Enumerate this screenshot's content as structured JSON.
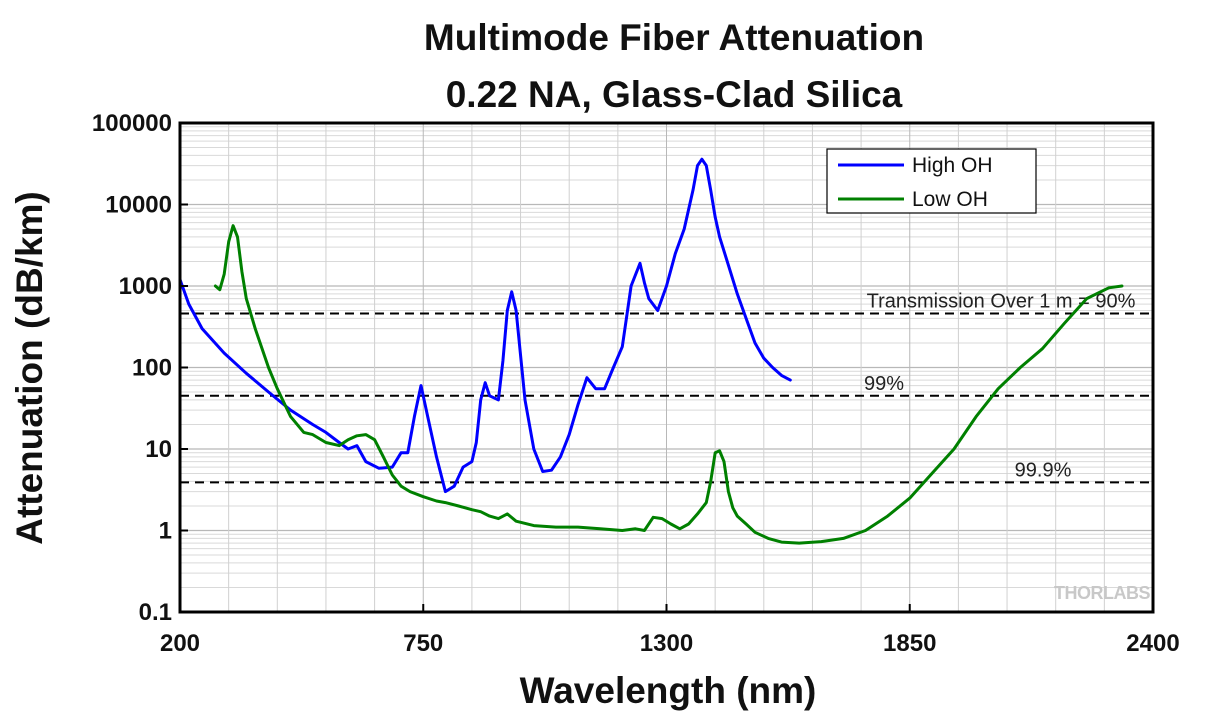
{
  "chart_data": {
    "type": "line",
    "title_lines": [
      "Multimode Fiber Attenuation",
      "0.22 NA, Glass-Clad Silica"
    ],
    "xlabel": "Wavelength (nm)",
    "ylabel": "Attenuation (dB/km)",
    "xlim": [
      200,
      2400
    ],
    "ylim": [
      0.1,
      100000
    ],
    "yscale": "log",
    "x_ticks": [
      200,
      750,
      1300,
      1850,
      2400
    ],
    "x_tick_labels": [
      "200",
      "750",
      "1300",
      "1850",
      "2400"
    ],
    "y_ticks": [
      0.1,
      1,
      10,
      100,
      1000,
      10000,
      100000
    ],
    "y_tick_labels": [
      "0.1",
      "1",
      "10",
      "100",
      "1000",
      "10000",
      "100000"
    ],
    "grid": true,
    "legend_position": "top-right",
    "series": [
      {
        "name": "High OH",
        "color": "#0000ff",
        "x": [
          200,
          220,
          250,
          300,
          350,
          400,
          450,
          500,
          530,
          560,
          580,
          600,
          620,
          650,
          680,
          700,
          715,
          730,
          745,
          760,
          780,
          800,
          820,
          840,
          860,
          870,
          880,
          890,
          900,
          920,
          930,
          940,
          950,
          960,
          980,
          1000,
          1020,
          1040,
          1060,
          1080,
          1100,
          1120,
          1140,
          1160,
          1180,
          1200,
          1220,
          1240,
          1250,
          1260,
          1280,
          1300,
          1320,
          1340,
          1360,
          1370,
          1380,
          1390,
          1400,
          1410,
          1420,
          1440,
          1460,
          1480,
          1500,
          1520,
          1540,
          1560,
          1580
        ],
        "y": [
          1200,
          600,
          300,
          150,
          85,
          50,
          30,
          20,
          16,
          12,
          10,
          11,
          7,
          5.8,
          6,
          9,
          9,
          25,
          60,
          25,
          8,
          3,
          3.5,
          6,
          7,
          12,
          40,
          65,
          45,
          40,
          120,
          500,
          850,
          500,
          40,
          10,
          5.3,
          5.5,
          8,
          15,
          35,
          75,
          55,
          55,
          100,
          180,
          1000,
          1900,
          1100,
          700,
          500,
          1000,
          2500,
          5000,
          15000,
          30000,
          36000,
          30000,
          15000,
          7000,
          4000,
          1800,
          800,
          400,
          200,
          130,
          100,
          80,
          70
        ]
      },
      {
        "name": "Low OH",
        "color": "#008000",
        "x": [
          280,
          290,
          300,
          310,
          320,
          330,
          340,
          350,
          370,
          400,
          420,
          450,
          480,
          500,
          530,
          560,
          580,
          600,
          620,
          640,
          660,
          680,
          700,
          720,
          750,
          780,
          800,
          830,
          860,
          880,
          900,
          920,
          940,
          960,
          1000,
          1050,
          1100,
          1150,
          1200,
          1230,
          1250,
          1270,
          1290,
          1310,
          1330,
          1350,
          1370,
          1390,
          1400,
          1410,
          1420,
          1430,
          1440,
          1450,
          1460,
          1480,
          1500,
          1530,
          1560,
          1600,
          1650,
          1700,
          1750,
          1800,
          1850,
          1900,
          1950,
          2000,
          2050,
          2100,
          2150,
          2200,
          2250,
          2300,
          2330
        ],
        "y": [
          1000,
          900,
          1400,
          3500,
          5500,
          4000,
          1500,
          700,
          300,
          100,
          55,
          25,
          16,
          15,
          12,
          11,
          13,
          14.5,
          15,
          13,
          8,
          4.8,
          3.5,
          3,
          2.6,
          2.3,
          2.2,
          2,
          1.8,
          1.7,
          1.5,
          1.4,
          1.6,
          1.3,
          1.15,
          1.1,
          1.1,
          1.05,
          1.0,
          1.05,
          1.0,
          1.45,
          1.4,
          1.2,
          1.05,
          1.2,
          1.6,
          2.2,
          4,
          9,
          9.5,
          7,
          3,
          1.9,
          1.5,
          1.2,
          0.95,
          0.8,
          0.72,
          0.7,
          0.73,
          0.8,
          1.0,
          1.5,
          2.5,
          5,
          10,
          25,
          55,
          100,
          170,
          350,
          700,
          950,
          1000
        ]
      }
    ],
    "reference_lines": [
      {
        "y": 460,
        "label": "Transmission Over 1 m = 90%"
      },
      {
        "y": 45,
        "label": "99%"
      },
      {
        "y": 3.9,
        "label": "99.9%"
      }
    ],
    "watermark": "THORLABS"
  }
}
